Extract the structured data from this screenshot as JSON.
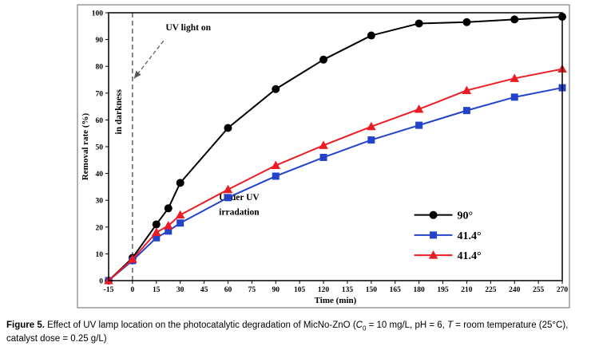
{
  "chart_data": {
    "type": "line",
    "title": "",
    "xlabel": "Time (min)",
    "ylabel": "Removal rate (%)",
    "xlim": [
      -15,
      270
    ],
    "ylim": [
      0,
      100
    ],
    "xticks": [
      -15,
      0,
      15,
      30,
      45,
      60,
      75,
      90,
      105,
      120,
      135,
      150,
      165,
      180,
      195,
      210,
      225,
      240,
      255,
      270
    ],
    "yticks": [
      0,
      10,
      20,
      30,
      40,
      50,
      60,
      70,
      80,
      90,
      100
    ],
    "grid": false,
    "vline": {
      "x": 0,
      "style": "dashed"
    },
    "arrow": {
      "from": [
        19.5,
        89.5
      ],
      "to": [
        1,
        75.5
      ],
      "dashed": true
    },
    "annotations": [
      {
        "text": "UV light on",
        "x": 35,
        "y": 93.5
      },
      {
        "text": "in darkness",
        "x": -7,
        "y": 63,
        "rotate": -90
      },
      {
        "text": "Under UV",
        "x": 67,
        "y": 30
      },
      {
        "text": "irradation",
        "x": 67,
        "y": 24.5
      }
    ],
    "series": [
      {
        "name": "90°",
        "color": "#000000",
        "marker": "circle",
        "x": [
          -15,
          0,
          15,
          22.5,
          30,
          60,
          90,
          120,
          150,
          180,
          210,
          240,
          270
        ],
        "y": [
          0,
          8.5,
          21,
          27,
          36.5,
          57,
          71.5,
          82.5,
          91.5,
          96,
          96.5,
          97.5,
          98.5
        ]
      },
      {
        "name": "41.4°",
        "color": "#2343cb",
        "marker": "square",
        "x": [
          -15,
          0,
          15,
          22.5,
          30,
          60,
          90,
          120,
          150,
          180,
          210,
          240,
          270
        ],
        "y": [
          0,
          7.5,
          16,
          18.5,
          21.5,
          31,
          39,
          46,
          52.5,
          58,
          63.5,
          68.5,
          72
        ]
      },
      {
        "name": "41.4°",
        "color": "#ec1c24",
        "marker": "triangle",
        "x": [
          -15,
          0,
          15,
          22.5,
          30,
          60,
          90,
          120,
          150,
          180,
          210,
          240,
          270
        ],
        "y": [
          0,
          8,
          18,
          20.5,
          24.5,
          34,
          43,
          50.5,
          57.5,
          64,
          71,
          75.5,
          79
        ]
      }
    ],
    "legend": {
      "position": "inside-right",
      "x_line": [
        177,
        201
      ],
      "label_x_offset": 202,
      "ys": [
        24.5,
        17,
        9.5
      ],
      "labels": [
        "90°",
        "41.4°",
        "41.4°"
      ]
    }
  },
  "caption": {
    "parts": [
      {
        "text": "Figure 5.",
        "style": "bold"
      },
      {
        "text": " Effect of UV lamp location on the photocatalytic degradation of MicNo-ZnO (",
        "style": ""
      },
      {
        "text": "C",
        "style": "italic"
      },
      {
        "text": "0",
        "style": "sub"
      },
      {
        "text": " = 10 mg/L, pH = 6, ",
        "style": ""
      },
      {
        "text": "T",
        "style": "italic"
      },
      {
        "text": " = room temperature (25°C), catalyst dose = 0.25 g/L)",
        "style": ""
      }
    ]
  }
}
